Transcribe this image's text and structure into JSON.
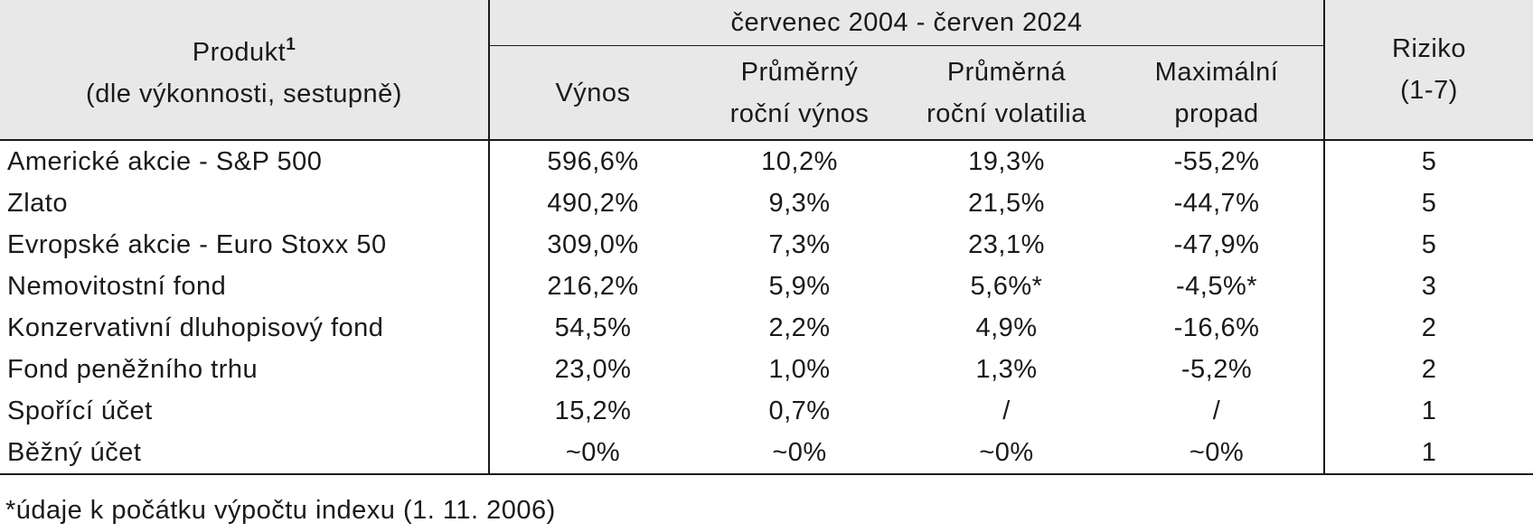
{
  "header": {
    "product_line1": "Produkt",
    "product_sup": "1",
    "product_line2": "(dle výkonnosti, sestupně)",
    "period": "červenec 2004 - červen 2024",
    "col_return": "Výnos",
    "col_avg_return_l1": "Průměrný",
    "col_avg_return_l2": "roční výnos",
    "col_volatility_l1": "Průměrná",
    "col_volatility_l2": "roční volatilia",
    "col_drawdown_l1": "Maximální",
    "col_drawdown_l2": "propad",
    "col_risk_l1": "Riziko",
    "col_risk_l2": "(1-7)"
  },
  "rows": [
    {
      "name": "Americké akcie - S&P 500",
      "return": "596,6%",
      "avg": "10,2%",
      "vol": "19,3%",
      "dd": "-55,2%",
      "risk": "5"
    },
    {
      "name": "Zlato",
      "return": "490,2%",
      "avg": "9,3%",
      "vol": "21,5%",
      "dd": "-44,7%",
      "risk": "5"
    },
    {
      "name": "Evropské akcie - Euro Stoxx 50",
      "return": "309,0%",
      "avg": "7,3%",
      "vol": "23,1%",
      "dd": "-47,9%",
      "risk": "5"
    },
    {
      "name": "Nemovitostní fond",
      "return": "216,2%",
      "avg": "5,9%",
      "vol": "5,6%*",
      "dd": "-4,5%*",
      "risk": "3"
    },
    {
      "name": "Konzervativní dluhopisový fond",
      "return": "54,5%",
      "avg": "2,2%",
      "vol": "4,9%",
      "dd": "-16,6%",
      "risk": "2"
    },
    {
      "name": "Fond peněžního trhu",
      "return": "23,0%",
      "avg": "1,0%",
      "vol": "1,3%",
      "dd": "-5,2%",
      "risk": "2"
    },
    {
      "name": "Spořící účet",
      "return": "15,2%",
      "avg": "0,7%",
      "vol": "/",
      "dd": "/",
      "risk": "1"
    },
    {
      "name": "Běžný účet",
      "return": "~0%",
      "avg": "~0%",
      "vol": "~0%",
      "dd": "~0%",
      "risk": "1"
    }
  ],
  "footnote": "*údaje k počátku výpočtu indexu (1. 11. 2006)"
}
